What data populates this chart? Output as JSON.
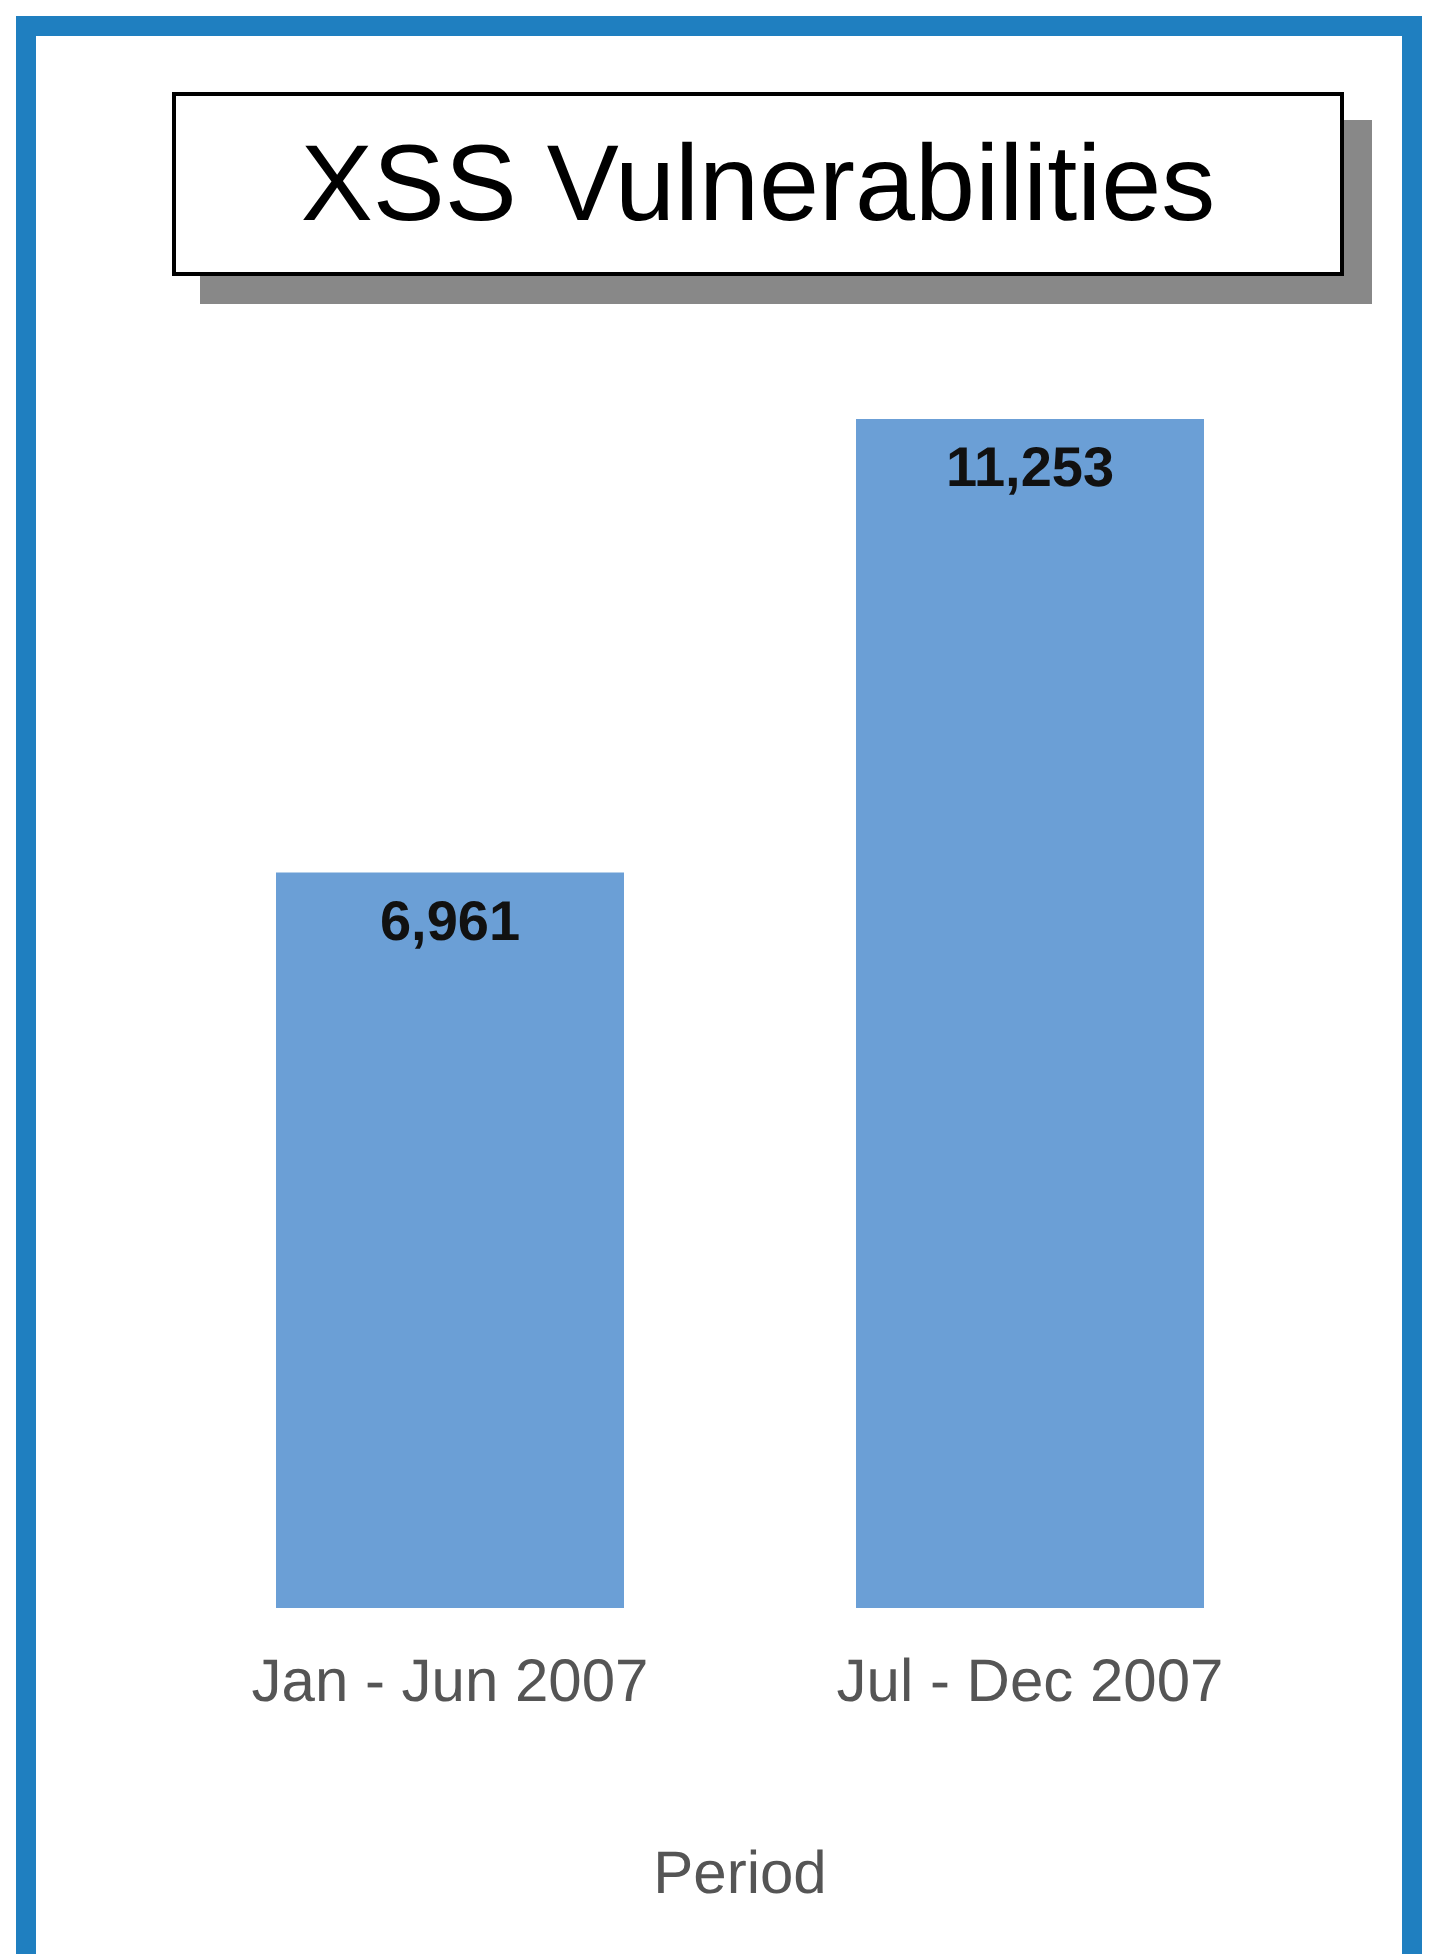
{
  "chart_data": {
    "type": "bar",
    "title": "XSS Vulnerabilities",
    "xlabel": "Period",
    "categories": [
      "Jan - Jun 2007",
      "Jul - Dec 2007"
    ],
    "values": [
      6961,
      11253
    ],
    "value_labels": [
      "6,961",
      "11,253"
    ],
    "color": "#6b9fd6",
    "grid": false,
    "legend": false
  }
}
